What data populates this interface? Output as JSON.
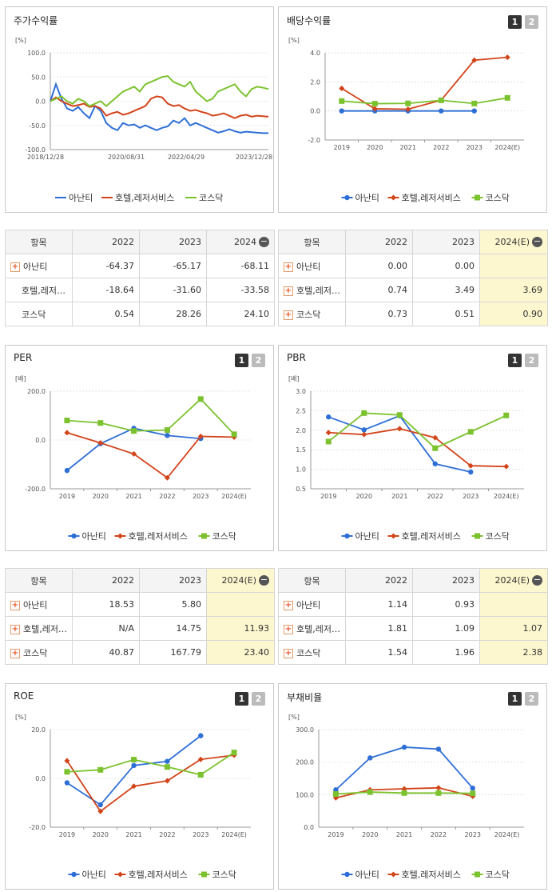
{
  "colors": {
    "ananti": "#2e6fd6",
    "hotel": "#d2441a",
    "kosdaq": "#7cc22e"
  },
  "tables": [
    {
      "id": "t_price",
      "cols": [
        "항목",
        "2022",
        "2023",
        "2024"
      ],
      "collapse": true,
      "rows": [
        {
          "name": "아난티",
          "plus": true,
          "v": [
            "-64.37",
            "-65.17",
            "-68.11"
          ]
        },
        {
          "name": "호텔,레저…",
          "plus": false,
          "v": [
            "-18.64",
            "-31.60",
            "-33.58"
          ]
        },
        {
          "name": "코스닥",
          "plus": false,
          "v": [
            "0.54",
            "28.26",
            "24.10"
          ]
        }
      ]
    },
    {
      "id": "t_div",
      "cols": [
        "항목",
        "2022",
        "2023",
        "2024(E)"
      ],
      "collapse": false,
      "rows": [
        {
          "name": "아난티",
          "plus": true,
          "v": [
            "0.00",
            "0.00",
            ""
          ]
        },
        {
          "name": "호텔,레저…",
          "plus": true,
          "v": [
            "0.74",
            "3.49",
            "3.69"
          ]
        },
        {
          "name": "코스닥",
          "plus": true,
          "v": [
            "0.73",
            "0.51",
            "0.90"
          ]
        }
      ]
    },
    {
      "id": "t_per",
      "cols": [
        "항목",
        "2022",
        "2023",
        "2024(E)"
      ],
      "collapse": true,
      "rows": [
        {
          "name": "아난티",
          "plus": true,
          "v": [
            "18.53",
            "5.80",
            ""
          ]
        },
        {
          "name": "호텔,레저…",
          "plus": true,
          "v": [
            "N/A",
            "14.75",
            "11.93"
          ]
        },
        {
          "name": "코스닥",
          "plus": true,
          "v": [
            "40.87",
            "167.79",
            "23.40"
          ]
        }
      ]
    },
    {
      "id": "t_pbr",
      "cols": [
        "항목",
        "2022",
        "2023",
        "2024(E)"
      ],
      "collapse": false,
      "rows": [
        {
          "name": "아난티",
          "plus": true,
          "v": [
            "1.14",
            "0.93",
            ""
          ]
        },
        {
          "name": "호텔,레저…",
          "plus": true,
          "v": [
            "1.81",
            "1.09",
            "1.07"
          ]
        },
        {
          "name": "코스닥",
          "plus": true,
          "v": [
            "1.54",
            "1.96",
            "2.38"
          ]
        }
      ]
    }
  ],
  "chart_data": [
    {
      "id": "c_price",
      "title": "주가수익률",
      "type": "line",
      "unit": "[%]",
      "ylim": [
        -100,
        100
      ],
      "yticks": [
        "100.0",
        "50.0",
        "0.0",
        "-50.0",
        "-100.0"
      ],
      "xticks": [
        "2018/12/28",
        "2020/08/31",
        "2022/04/29",
        "2023/12/28"
      ],
      "buttons": false,
      "series": [
        {
          "name": "아난티",
          "values": [
            0,
            35,
            5,
            -15,
            -20,
            -12,
            -25,
            -35,
            -10,
            -20,
            -45,
            -55,
            -60,
            -45,
            -50,
            -48,
            -55,
            -50,
            -55,
            -60,
            -55,
            -52,
            -40,
            -45,
            -35,
            -50,
            -45,
            -50,
            -55,
            -60,
            -65,
            -62,
            -58,
            -62,
            -65,
            -63,
            -64,
            -65,
            -66,
            -66
          ]
        },
        {
          "name": "호텔,레저서비스",
          "values": [
            0,
            8,
            0,
            -5,
            -10,
            -8,
            -5,
            -12,
            -10,
            -15,
            -30,
            -25,
            -22,
            -28,
            -25,
            -20,
            -15,
            -10,
            5,
            10,
            8,
            -5,
            -10,
            -8,
            -15,
            -20,
            -18,
            -22,
            -25,
            -30,
            -28,
            -25,
            -30,
            -35,
            -30,
            -28,
            -32,
            -30,
            -31,
            -32
          ]
        },
        {
          "name": "코스닥",
          "values": [
            0,
            5,
            10,
            0,
            -5,
            5,
            0,
            -10,
            -5,
            0,
            -10,
            0,
            10,
            20,
            25,
            30,
            20,
            35,
            40,
            45,
            50,
            52,
            40,
            35,
            30,
            40,
            20,
            10,
            0,
            5,
            20,
            25,
            30,
            35,
            20,
            10,
            25,
            30,
            28,
            25
          ]
        }
      ]
    },
    {
      "id": "c_div",
      "title": "배당수익률",
      "type": "line",
      "unit": "[%]",
      "ylim": [
        -2,
        4
      ],
      "yticks": [
        "4.0",
        "2.0",
        "0.0",
        "-2.0"
      ],
      "xticks": [
        "2019",
        "2020",
        "2021",
        "2022",
        "2023",
        "2024(E)"
      ],
      "buttons": true,
      "series": [
        {
          "name": "아난티",
          "values": [
            0.0,
            0.0,
            0.0,
            0.0,
            0.0,
            null
          ]
        },
        {
          "name": "호텔,레저서비스",
          "values": [
            1.55,
            0.15,
            0.12,
            0.74,
            3.49,
            3.69
          ]
        },
        {
          "name": "코스닥",
          "values": [
            0.68,
            0.5,
            0.52,
            0.73,
            0.51,
            0.9
          ]
        }
      ]
    },
    {
      "id": "c_per",
      "title": "PER",
      "type": "line",
      "unit": "[배]",
      "ylim": [
        -200,
        200
      ],
      "yticks": [
        "200.0",
        "0.0",
        "-200.0"
      ],
      "xticks": [
        "2019",
        "2020",
        "2021",
        "2022",
        "2023",
        "2024(E)"
      ],
      "buttons": true,
      "series": [
        {
          "name": "아난티",
          "values": [
            -125,
            -15,
            48,
            18.53,
            5.8,
            null
          ]
        },
        {
          "name": "호텔,레저서비스",
          "values": [
            30,
            -12,
            -57,
            -155,
            14.75,
            11.93
          ]
        },
        {
          "name": "코스닥",
          "values": [
            80,
            70,
            37,
            40.87,
            167.79,
            23.4
          ]
        }
      ]
    },
    {
      "id": "c_pbr",
      "title": "PBR",
      "type": "line",
      "unit": "[배]",
      "ylim": [
        0.5,
        3.0
      ],
      "yticks": [
        "3.0",
        "2.5",
        "2.0",
        "1.5",
        "1.0",
        "0.5"
      ],
      "xticks": [
        "2019",
        "2020",
        "2021",
        "2022",
        "2023",
        "2024(E)"
      ],
      "buttons": true,
      "series": [
        {
          "name": "아난티",
          "values": [
            2.34,
            2.01,
            2.37,
            1.14,
            0.93,
            null
          ]
        },
        {
          "name": "호텔,레저서비스",
          "values": [
            1.94,
            1.89,
            2.04,
            1.81,
            1.09,
            1.07
          ]
        },
        {
          "name": "코스닥",
          "values": [
            1.71,
            2.44,
            2.39,
            1.54,
            1.96,
            2.38
          ]
        }
      ]
    },
    {
      "id": "c_roe",
      "title": "ROE",
      "type": "line",
      "unit": "[%]",
      "ylim": [
        -20,
        20
      ],
      "yticks": [
        "20.0",
        "0.0",
        "-20.0"
      ],
      "xticks": [
        "2019",
        "2020",
        "2021",
        "2022",
        "2023",
        "2024(E)"
      ],
      "buttons": true,
      "series": [
        {
          "name": "아난티",
          "values": [
            -1.8,
            -10.8,
            5.3,
            7.0,
            17.5,
            null
          ]
        },
        {
          "name": "호텔,레저서비스",
          "values": [
            7.2,
            -13.5,
            -3.2,
            -1.0,
            7.8,
            9.5
          ]
        },
        {
          "name": "코스닥",
          "values": [
            2.7,
            3.5,
            7.7,
            4.7,
            1.5,
            10.6
          ]
        }
      ]
    },
    {
      "id": "c_debt",
      "title": "부채비율",
      "type": "line",
      "unit": "[%]",
      "ylim": [
        0,
        300
      ],
      "yticks": [
        "300.0",
        "200.0",
        "100.0",
        "0.0"
      ],
      "xticks": [
        "2019",
        "2020",
        "2021",
        "2022",
        "2023",
        "2024(E)"
      ],
      "buttons": true,
      "series": [
        {
          "name": "아난티",
          "values": [
            115,
            213,
            246,
            240,
            120,
            null
          ]
        },
        {
          "name": "호텔,레저서비스",
          "values": [
            90,
            115,
            118,
            121,
            95,
            null
          ]
        },
        {
          "name": "코스닥",
          "values": [
            102,
            108,
            105,
            105,
            104,
            null
          ]
        }
      ]
    }
  ]
}
